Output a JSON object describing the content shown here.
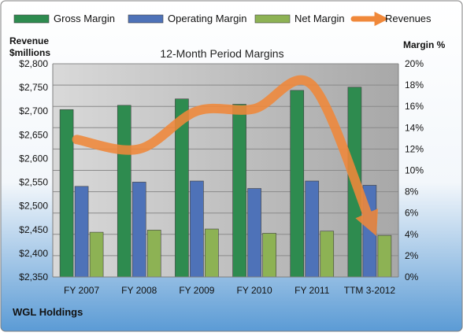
{
  "colors": {
    "gross": "#2e8b4f",
    "operating": "#4e72b8",
    "net": "#8db254",
    "revenue": "#f0883a",
    "plot_bg": "#b5b5b5",
    "frame_bg_top": "#ffffff",
    "frame_bg_bottom": "#5b9bd5"
  },
  "chart_data": {
    "type": "bar",
    "title": "12-Month Period Margins",
    "company": "WGL Holdings",
    "categories": [
      "FY 2007",
      "FY 2008",
      "FY 2009",
      "FY 2010",
      "FY 2011",
      "TTM 3-2012"
    ],
    "y_left": {
      "label_line1": "Revenue",
      "label_line2": "$millions",
      "min": 2350,
      "max": 2800,
      "step": 50,
      "tick_labels": [
        "$2,350",
        "$2,400",
        "$2,450",
        "$2,500",
        "$2,550",
        "$2,600",
        "$2,650",
        "$2,700",
        "$2,750",
        "$2,800"
      ]
    },
    "y_right": {
      "label": "Margin %",
      "min": 0,
      "max": 20,
      "step": 2,
      "tick_labels": [
        "0%",
        "2%",
        "4%",
        "6%",
        "8%",
        "10%",
        "12%",
        "14%",
        "16%",
        "18%",
        "20%"
      ]
    },
    "series": [
      {
        "name": "Gross Margin",
        "key": "gross",
        "axis": "right",
        "type": "bar",
        "values": [
          15.7,
          16.1,
          16.7,
          16.2,
          17.5,
          17.8
        ]
      },
      {
        "name": "Operating Margin",
        "key": "operating",
        "axis": "right",
        "type": "bar",
        "values": [
          8.5,
          8.9,
          9.0,
          8.3,
          9.0,
          8.6
        ]
      },
      {
        "name": "Net Margin",
        "key": "net",
        "axis": "right",
        "type": "bar",
        "values": [
          4.2,
          4.4,
          4.5,
          4.1,
          4.3,
          3.9
        ]
      },
      {
        "name": "Revenues",
        "key": "revenue",
        "axis": "left",
        "type": "line",
        "values": [
          2640,
          2620,
          2700,
          2705,
          2755,
          2470
        ]
      }
    ],
    "legend_position": "top",
    "grid": true
  }
}
